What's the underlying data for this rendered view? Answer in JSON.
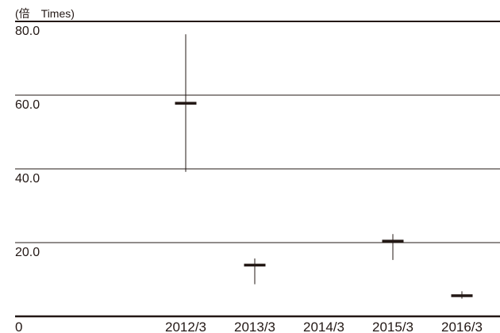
{
  "chart_data": {
    "type": "candlestick",
    "unit_label": "(倍　Times)",
    "x_zero_label": "0",
    "categories": [
      "2012/3",
      "2013/3",
      "2014/3",
      "2015/3",
      "2016/3"
    ],
    "y_ticks": [
      {
        "value": 80,
        "label": "80.0"
      },
      {
        "value": 60,
        "label": "60.0"
      },
      {
        "value": 40,
        "label": "40.0"
      },
      {
        "value": 20,
        "label": "20.0"
      }
    ],
    "ylim": [
      0,
      80
    ],
    "series": [
      {
        "values": [
          {
            "category": "2012/3",
            "high": 76.5,
            "low": 39.2,
            "value": 57.8
          },
          {
            "category": "2013/3",
            "high": 15.7,
            "low": 8.7,
            "value": 13.9
          },
          {
            "category": "2014/3",
            "high": null,
            "low": null,
            "value": null
          },
          {
            "category": "2015/3",
            "high": 22.3,
            "low": 15.3,
            "value": 20.4
          },
          {
            "category": "2016/3",
            "high": 6.8,
            "low": 4.8,
            "value": 5.6
          }
        ]
      }
    ],
    "grid": true,
    "colors": {
      "ink": "#231815"
    }
  }
}
